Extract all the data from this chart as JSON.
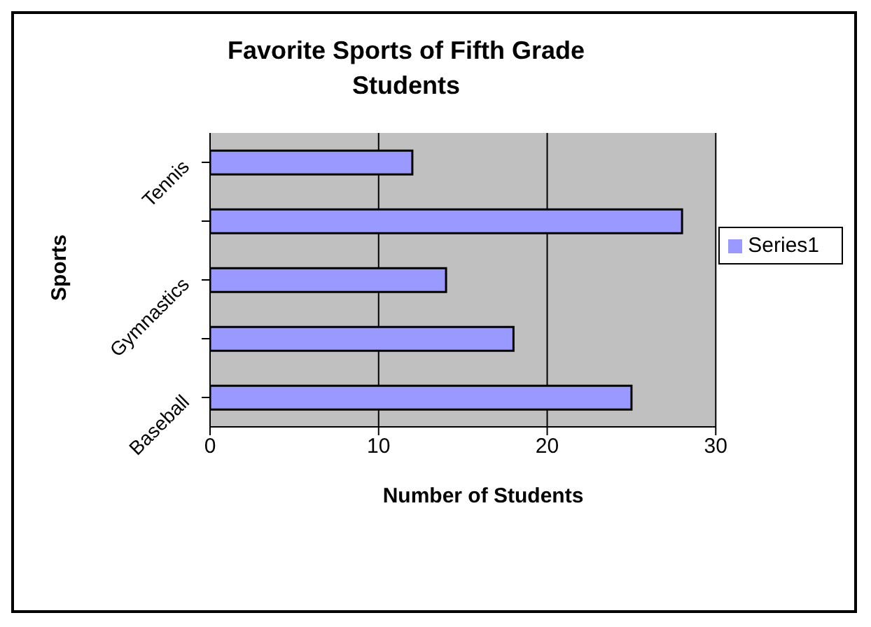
{
  "chart_data": {
    "type": "bar",
    "orientation": "horizontal",
    "title": "Favorite Sports of Fifth Grade Students",
    "xlabel": "Number of Students",
    "ylabel": "Sports",
    "categories": [
      "Tennis",
      null,
      "Gymnastics",
      null,
      "Baseball"
    ],
    "series": [
      {
        "name": "Series1",
        "color": "#9999ff",
        "values": [
          12,
          28,
          14,
          18,
          25
        ]
      }
    ],
    "xlim": [
      0,
      30
    ],
    "xticks": [
      0,
      10,
      20,
      30
    ],
    "grid": "x",
    "legend": "right"
  }
}
